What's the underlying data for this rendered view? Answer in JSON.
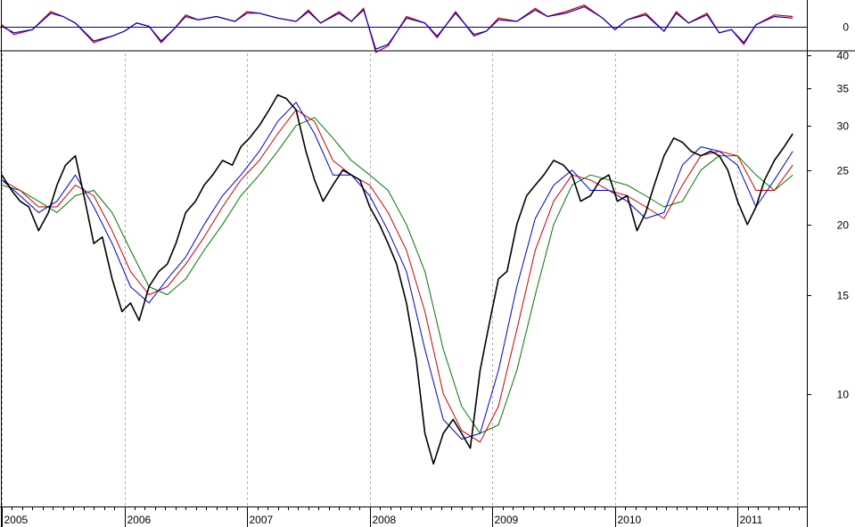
{
  "chart_data": [
    {
      "type": "line",
      "panel": "oscillator",
      "y_ticks": [
        0
      ],
      "ylim": [
        -1.5,
        1.5
      ],
      "grid": false,
      "series": [
        {
          "color": "#cc0000",
          "x": [
            2005.0,
            2005.1,
            2005.25,
            2005.4,
            2005.5,
            2005.6,
            2005.75,
            2005.9,
            2006.0,
            2006.1,
            2006.2,
            2006.3,
            2006.4,
            2006.5,
            2006.6,
            2006.75,
            2006.9,
            2007.0,
            2007.1,
            2007.25,
            2007.4,
            2007.5,
            2007.6,
            2007.75,
            2007.85,
            2007.95,
            2008.05,
            2008.15,
            2008.3,
            2008.45,
            2008.55,
            2008.7,
            2008.85,
            2008.95,
            2009.05,
            2009.2,
            2009.35,
            2009.45,
            2009.6,
            2009.75,
            2009.9,
            2010.0,
            2010.1,
            2010.25,
            2010.4,
            2010.5,
            2010.6,
            2010.75,
            2010.85,
            2010.95,
            2011.05,
            2011.15,
            2011.3,
            2011.45
          ],
          "values": [
            0.1,
            -0.5,
            -0.2,
            0.9,
            0.6,
            0.2,
            -1.0,
            -0.6,
            -0.3,
            0.2,
            0.0,
            -1.0,
            -0.2,
            0.7,
            0.4,
            0.6,
            0.3,
            0.9,
            0.8,
            0.5,
            0.3,
            1.0,
            0.2,
            0.9,
            0.3,
            1.1,
            -1.6,
            -1.2,
            0.6,
            0.2,
            -0.7,
            0.9,
            -0.6,
            -0.3,
            0.5,
            0.3,
            1.1,
            0.6,
            0.9,
            1.3,
            0.5,
            -0.2,
            0.4,
            0.8,
            -0.3,
            0.9,
            0.2,
            0.8,
            -0.4,
            -0.2,
            -1.1,
            0.1,
            0.7,
            0.6
          ]
        },
        {
          "color": "#0000cc",
          "x": [
            2005.0,
            2005.1,
            2005.25,
            2005.4,
            2005.5,
            2005.6,
            2005.75,
            2005.9,
            2006.0,
            2006.1,
            2006.2,
            2006.3,
            2006.4,
            2006.5,
            2006.6,
            2006.75,
            2006.9,
            2007.0,
            2007.1,
            2007.25,
            2007.4,
            2007.5,
            2007.6,
            2007.75,
            2007.85,
            2007.95,
            2008.05,
            2008.15,
            2008.3,
            2008.45,
            2008.55,
            2008.7,
            2008.85,
            2008.95,
            2009.05,
            2009.2,
            2009.35,
            2009.45,
            2009.6,
            2009.75,
            2009.9,
            2010.0,
            2010.1,
            2010.25,
            2010.4,
            2010.5,
            2010.6,
            2010.75,
            2010.85,
            2010.95,
            2011.05,
            2011.15,
            2011.3,
            2011.45
          ],
          "values": [
            0.0,
            -0.4,
            -0.2,
            0.8,
            0.6,
            0.2,
            -0.9,
            -0.6,
            -0.3,
            0.2,
            0.0,
            -0.9,
            -0.2,
            0.6,
            0.4,
            0.6,
            0.3,
            0.8,
            0.8,
            0.5,
            0.3,
            0.9,
            0.2,
            0.8,
            0.3,
            1.0,
            -1.4,
            -1.1,
            0.5,
            0.2,
            -0.6,
            0.8,
            -0.5,
            -0.3,
            0.4,
            0.3,
            1.0,
            0.6,
            0.8,
            1.2,
            0.5,
            -0.2,
            0.4,
            0.7,
            -0.3,
            0.8,
            0.2,
            0.7,
            -0.4,
            -0.2,
            -1.0,
            0.1,
            0.6,
            0.5
          ]
        }
      ]
    },
    {
      "type": "line",
      "panel": "price",
      "yscale": "log",
      "ylim": [
        6.3,
        40
      ],
      "y_ticks": [
        10,
        15,
        20,
        25,
        30,
        35,
        40
      ],
      "x_ticks": [
        "2005",
        "2006",
        "2007",
        "2008",
        "2009",
        "2010",
        "2011"
      ],
      "xlim": [
        2005.0,
        2011.55
      ],
      "grid": "vertical-dashed",
      "series": [
        {
          "color": "#000000",
          "x": [
            2005.0,
            2005.08,
            2005.15,
            2005.22,
            2005.3,
            2005.38,
            2005.45,
            2005.52,
            2005.6,
            2005.68,
            2005.75,
            2005.82,
            2005.9,
            2005.98,
            2006.05,
            2006.12,
            2006.2,
            2006.28,
            2006.35,
            2006.42,
            2006.5,
            2006.58,
            2006.65,
            2006.72,
            2006.8,
            2006.88,
            2006.95,
            2007.02,
            2007.1,
            2007.18,
            2007.25,
            2007.32,
            2007.4,
            2007.48,
            2007.55,
            2007.62,
            2007.7,
            2007.78,
            2007.85,
            2007.92,
            2008.0,
            2008.08,
            2008.15,
            2008.22,
            2008.3,
            2008.38,
            2008.45,
            2008.52,
            2008.6,
            2008.68,
            2008.75,
            2008.82,
            2008.9,
            2008.98,
            2009.05,
            2009.12,
            2009.2,
            2009.28,
            2009.35,
            2009.42,
            2009.5,
            2009.58,
            2009.65,
            2009.72,
            2009.8,
            2009.88,
            2009.95,
            2010.02,
            2010.1,
            2010.18,
            2010.25,
            2010.32,
            2010.4,
            2010.48,
            2010.55,
            2010.62,
            2010.7,
            2010.78,
            2010.85,
            2010.92,
            2011.0,
            2011.08,
            2011.15,
            2011.22,
            2011.3,
            2011.38,
            2011.45
          ],
          "values": [
            24.5,
            23.0,
            22.0,
            21.5,
            19.5,
            21.0,
            23.5,
            25.5,
            26.5,
            22.0,
            18.5,
            19.0,
            16.0,
            14.0,
            14.5,
            13.5,
            15.5,
            16.5,
            17.0,
            18.5,
            21.0,
            22.0,
            23.5,
            24.5,
            26.0,
            25.5,
            27.5,
            28.5,
            30.0,
            32.0,
            34.0,
            33.5,
            32.0,
            27.0,
            24.0,
            22.0,
            23.5,
            25.0,
            24.5,
            24.0,
            21.5,
            20.0,
            18.5,
            17.0,
            14.5,
            11.5,
            8.5,
            7.5,
            8.5,
            9.0,
            8.5,
            8.0,
            11.0,
            13.5,
            16.0,
            16.5,
            20.0,
            22.5,
            23.5,
            24.5,
            26.0,
            25.5,
            24.5,
            22.0,
            22.5,
            24.0,
            24.5,
            22.0,
            22.5,
            19.5,
            21.0,
            23.5,
            26.5,
            28.5,
            28.0,
            27.0,
            26.5,
            27.0,
            26.5,
            25.0,
            22.0,
            20.0,
            21.5,
            24.0,
            26.0,
            27.5,
            29.0
          ]
        },
        {
          "color": "#0000cc",
          "x": [
            2005.0,
            2005.15,
            2005.3,
            2005.45,
            2005.6,
            2005.75,
            2005.9,
            2006.05,
            2006.2,
            2006.35,
            2006.5,
            2006.65,
            2006.8,
            2006.95,
            2007.1,
            2007.25,
            2007.4,
            2007.55,
            2007.7,
            2007.85,
            2008.0,
            2008.15,
            2008.3,
            2008.45,
            2008.6,
            2008.75,
            2008.9,
            2009.05,
            2009.2,
            2009.35,
            2009.5,
            2009.65,
            2009.8,
            2009.95,
            2010.1,
            2010.25,
            2010.4,
            2010.55,
            2010.7,
            2010.85,
            2011.0,
            2011.15,
            2011.3,
            2011.45
          ],
          "values": [
            24.0,
            22.5,
            21.0,
            22.0,
            24.5,
            21.5,
            18.5,
            15.5,
            14.5,
            16.0,
            17.5,
            20.0,
            22.5,
            24.5,
            27.0,
            30.5,
            33.0,
            29.0,
            24.5,
            24.5,
            22.5,
            19.5,
            16.5,
            12.0,
            9.0,
            8.3,
            8.5,
            11.0,
            15.5,
            20.5,
            23.5,
            25.0,
            23.0,
            23.0,
            22.0,
            20.5,
            21.0,
            25.5,
            27.5,
            27.0,
            25.5,
            21.5,
            24.0,
            27.0
          ]
        },
        {
          "color": "#cc0000",
          "x": [
            2005.0,
            2005.15,
            2005.3,
            2005.45,
            2005.6,
            2005.75,
            2005.9,
            2006.05,
            2006.2,
            2006.35,
            2006.5,
            2006.65,
            2006.8,
            2006.95,
            2007.1,
            2007.25,
            2007.4,
            2007.55,
            2007.7,
            2007.85,
            2008.0,
            2008.15,
            2008.3,
            2008.45,
            2008.6,
            2008.75,
            2008.9,
            2009.05,
            2009.2,
            2009.35,
            2009.5,
            2009.65,
            2009.8,
            2009.95,
            2010.1,
            2010.25,
            2010.4,
            2010.55,
            2010.7,
            2010.85,
            2011.0,
            2011.15,
            2011.3,
            2011.45
          ],
          "values": [
            24.0,
            23.0,
            21.5,
            21.5,
            23.5,
            22.5,
            19.5,
            16.5,
            15.0,
            15.5,
            17.0,
            19.0,
            21.5,
            24.0,
            26.0,
            29.0,
            32.0,
            30.5,
            26.0,
            24.5,
            23.5,
            21.0,
            18.0,
            14.0,
            10.0,
            8.6,
            8.2,
            9.5,
            13.0,
            18.0,
            22.0,
            24.5,
            24.0,
            23.0,
            22.5,
            21.5,
            20.5,
            23.5,
            26.5,
            27.0,
            26.5,
            23.0,
            23.0,
            25.5
          ]
        },
        {
          "color": "#007700",
          "x": [
            2005.0,
            2005.15,
            2005.3,
            2005.45,
            2005.6,
            2005.75,
            2005.9,
            2006.05,
            2006.2,
            2006.35,
            2006.5,
            2006.65,
            2006.8,
            2006.95,
            2007.1,
            2007.25,
            2007.4,
            2007.55,
            2007.7,
            2007.85,
            2008.0,
            2008.15,
            2008.3,
            2008.45,
            2008.6,
            2008.75,
            2008.9,
            2009.05,
            2009.2,
            2009.35,
            2009.5,
            2009.65,
            2009.8,
            2009.95,
            2010.1,
            2010.25,
            2010.4,
            2010.55,
            2010.7,
            2010.85,
            2011.0,
            2011.15,
            2011.3,
            2011.45
          ],
          "values": [
            23.5,
            23.0,
            22.0,
            21.0,
            22.5,
            23.0,
            21.0,
            18.0,
            15.5,
            15.0,
            16.0,
            18.0,
            20.0,
            22.5,
            24.5,
            27.0,
            30.0,
            31.0,
            28.5,
            26.0,
            24.5,
            23.0,
            20.0,
            16.5,
            12.0,
            9.5,
            8.5,
            8.8,
            11.0,
            15.0,
            20.0,
            23.5,
            24.5,
            24.0,
            23.5,
            22.5,
            21.5,
            22.0,
            25.0,
            26.5,
            26.5,
            24.5,
            23.0,
            24.5
          ]
        }
      ]
    }
  ]
}
